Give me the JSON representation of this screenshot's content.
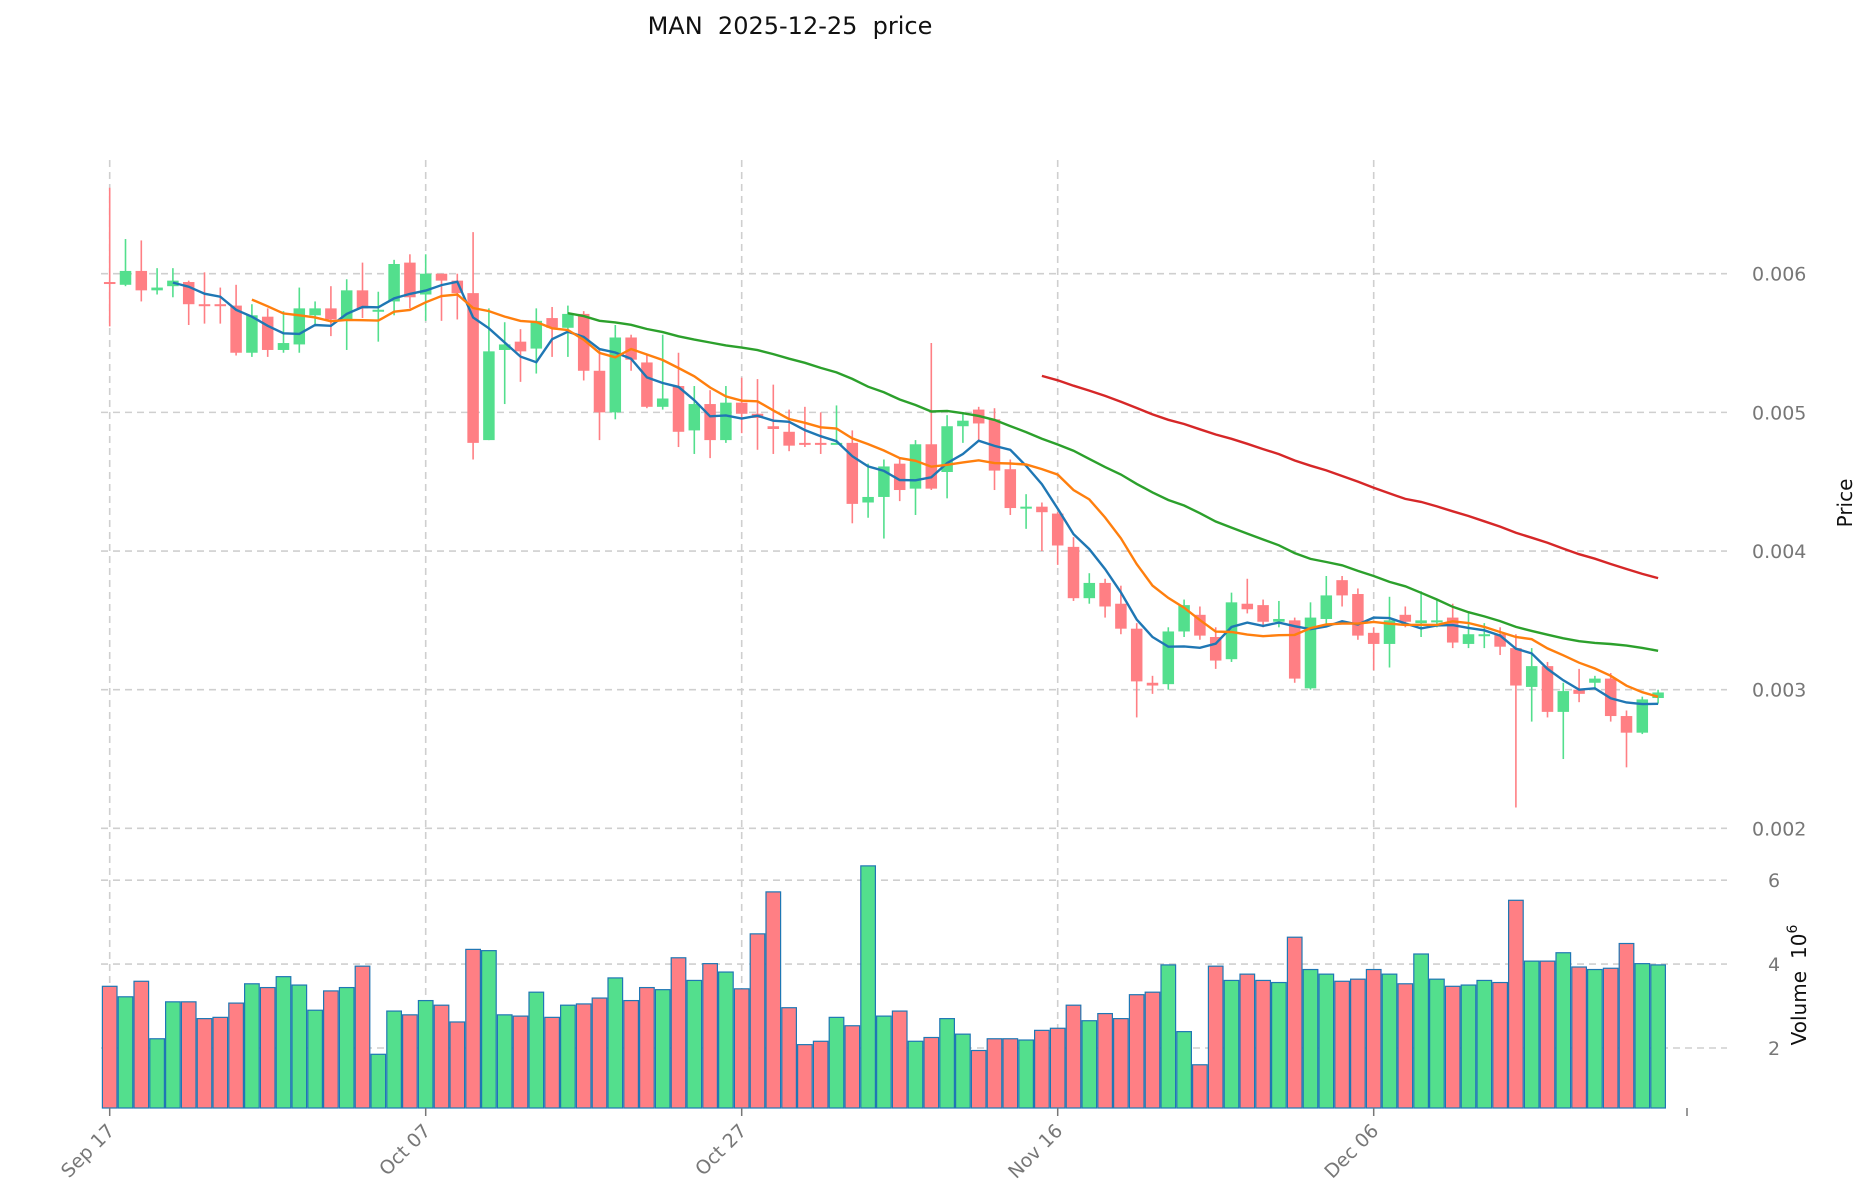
{
  "chart_data": {
    "type": "candlestick",
    "title": "MAN  2025-12-25  price",
    "ylabel": "Price",
    "ylabel_volume": "Volume",
    "volume_scale_base": "10",
    "volume_scale_exp": "6",
    "price_ylim": [
      0.00188,
      0.00682
    ],
    "price_yticks": [
      "0.002",
      "0.003",
      "0.004",
      "0.005",
      "0.006"
    ],
    "volume_ylim": [
      0.57,
      6.48
    ],
    "volume_yticks": [
      "2",
      "4",
      "6"
    ],
    "x_ticks": [
      {
        "index": 0,
        "label": "Sep 17"
      },
      {
        "index": 20,
        "label": "Oct 07"
      },
      {
        "index": 40,
        "label": "Oct 27"
      },
      {
        "index": 60,
        "label": "Nov 16"
      },
      {
        "index": 80,
        "label": "Dec 06"
      }
    ],
    "start_date": "2025-09-17",
    "grid": true,
    "colors": {
      "up": "#53df8d",
      "down": "#ff7f84",
      "volume_edge": "#1f77b4",
      "ma5": "#1f77b4",
      "ma10": "#ff7f0e",
      "ma30": "#2ca02c",
      "ma60": "#d62728"
    },
    "moving_averages": [
      5,
      10,
      30,
      60
    ],
    "open": [
      0.00594,
      0.00592,
      0.00602,
      0.00588,
      0.00591,
      0.00594,
      0.00578,
      0.00578,
      0.00577,
      0.00543,
      0.00569,
      0.00545,
      0.00549,
      0.0057,
      0.00575,
      0.00567,
      0.00588,
      0.00573,
      0.0058,
      0.00608,
      0.00585,
      0.006,
      0.00595,
      0.00586,
      0.0048,
      0.00545,
      0.00551,
      0.00546,
      0.00568,
      0.00561,
      0.00571,
      0.0053,
      0.005,
      0.00554,
      0.00536,
      0.00504,
      0.00519,
      0.00487,
      0.00506,
      0.0048,
      0.00507,
      0.00499,
      0.0049,
      0.00486,
      0.00478,
      0.00478,
      0.00478,
      0.00478,
      0.00435,
      0.00439,
      0.00463,
      0.00445,
      0.00477,
      0.00457,
      0.0049,
      0.00502,
      0.00495,
      0.00459,
      0.00431,
      0.00432,
      0.00427,
      0.00403,
      0.00366,
      0.00377,
      0.00362,
      0.00344,
      0.00305,
      0.00304,
      0.00342,
      0.00354,
      0.00338,
      0.00322,
      0.00362,
      0.00361,
      0.00349,
      0.0035,
      0.00301,
      0.00351,
      0.00379,
      0.00369,
      0.00341,
      0.00333,
      0.00354,
      0.00348,
      0.0035,
      0.00352,
      0.00333,
      0.0034,
      0.0034,
      0.0033,
      0.00302,
      0.00317,
      0.00284,
      0.003,
      0.00305,
      0.00308,
      0.00281,
      0.00269,
      0.00294
    ],
    "high": [
      0.00662,
      0.00625,
      0.00624,
      0.00604,
      0.00604,
      0.00595,
      0.00601,
      0.0059,
      0.00592,
      0.00578,
      0.00575,
      0.00573,
      0.0059,
      0.0058,
      0.00591,
      0.00596,
      0.00608,
      0.00587,
      0.0061,
      0.00614,
      0.00614,
      0.006,
      0.006,
      0.0063,
      0.00575,
      0.00565,
      0.0056,
      0.00575,
      0.00576,
      0.00577,
      0.00573,
      0.00546,
      0.00563,
      0.00556,
      0.00542,
      0.00556,
      0.00543,
      0.00519,
      0.00516,
      0.00519,
      0.00525,
      0.00524,
      0.0052,
      0.00502,
      0.00504,
      0.005,
      0.00505,
      0.00487,
      0.00463,
      0.00466,
      0.00467,
      0.0048,
      0.0055,
      0.00498,
      0.005,
      0.00504,
      0.00503,
      0.00466,
      0.00441,
      0.00435,
      0.00428,
      0.0041,
      0.00384,
      0.0038,
      0.00375,
      0.00348,
      0.0031,
      0.00345,
      0.00365,
      0.0036,
      0.00345,
      0.0037,
      0.0038,
      0.00365,
      0.00364,
      0.00352,
      0.00363,
      0.00382,
      0.00382,
      0.00373,
      0.00345,
      0.00367,
      0.0036,
      0.00371,
      0.00365,
      0.00362,
      0.00355,
      0.00348,
      0.00345,
      0.0034,
      0.0033,
      0.0032,
      0.00305,
      0.00315,
      0.0031,
      0.00312,
      0.00285,
      0.00295,
      0.003
    ],
    "low": [
      0.00562,
      0.00591,
      0.0058,
      0.00585,
      0.00583,
      0.00563,
      0.00564,
      0.00564,
      0.00541,
      0.0054,
      0.0054,
      0.00543,
      0.00543,
      0.00562,
      0.00555,
      0.00545,
      0.00568,
      0.00551,
      0.0057,
      0.00575,
      0.00566,
      0.00566,
      0.00567,
      0.00466,
      0.0048,
      0.00506,
      0.00522,
      0.00528,
      0.0054,
      0.0054,
      0.00523,
      0.0048,
      0.00495,
      0.0053,
      0.00503,
      0.00502,
      0.00475,
      0.0047,
      0.00467,
      0.00478,
      0.00485,
      0.00473,
      0.0047,
      0.00472,
      0.00475,
      0.0047,
      0.00477,
      0.0042,
      0.00424,
      0.00409,
      0.00436,
      0.00426,
      0.00444,
      0.00438,
      0.00478,
      0.0048,
      0.00444,
      0.00426,
      0.00416,
      0.004,
      0.0039,
      0.00364,
      0.00362,
      0.00352,
      0.0034,
      0.0028,
      0.00297,
      0.003,
      0.00338,
      0.00336,
      0.00315,
      0.0032,
      0.00355,
      0.00345,
      0.00345,
      0.00305,
      0.003,
      0.00345,
      0.0036,
      0.00336,
      0.00314,
      0.00316,
      0.00345,
      0.00338,
      0.00345,
      0.0033,
      0.0033,
      0.0033,
      0.00325,
      0.00215,
      0.00277,
      0.0028,
      0.0025,
      0.00291,
      0.003,
      0.00277,
      0.00244,
      0.00268,
      0.0029
    ],
    "close": [
      0.00593,
      0.00602,
      0.00588,
      0.0059,
      0.00595,
      0.00578,
      0.00577,
      0.00577,
      0.00543,
      0.0057,
      0.00545,
      0.0055,
      0.00575,
      0.00575,
      0.00567,
      0.00588,
      0.00575,
      0.00574,
      0.00607,
      0.00583,
      0.006,
      0.00595,
      0.00586,
      0.00478,
      0.00544,
      0.00549,
      0.00544,
      0.00566,
      0.00561,
      0.00571,
      0.0053,
      0.005,
      0.00554,
      0.00538,
      0.00504,
      0.0051,
      0.00486,
      0.00506,
      0.0048,
      0.00507,
      0.00499,
      0.00496,
      0.00488,
      0.00476,
      0.00477,
      0.00477,
      0.00478,
      0.00434,
      0.00439,
      0.00461,
      0.00444,
      0.00477,
      0.00445,
      0.0049,
      0.00494,
      0.00492,
      0.00458,
      0.00431,
      0.00432,
      0.00428,
      0.00404,
      0.00366,
      0.00377,
      0.0036,
      0.00344,
      0.00306,
      0.00303,
      0.00342,
      0.00361,
      0.00339,
      0.00321,
      0.00363,
      0.00358,
      0.00349,
      0.00351,
      0.00308,
      0.00352,
      0.00368,
      0.00368,
      0.00339,
      0.00333,
      0.0035,
      0.00349,
      0.0035,
      0.0035,
      0.00334,
      0.0034,
      0.0034,
      0.00331,
      0.00303,
      0.00317,
      0.00284,
      0.00299,
      0.00297,
      0.00308,
      0.00281,
      0.00269,
      0.00293,
      0.00298
    ],
    "volume": [
      3.47,
      3.22,
      3.59,
      2.22,
      3.1,
      3.1,
      2.7,
      2.73,
      3.07,
      3.53,
      3.44,
      3.7,
      3.5,
      2.9,
      3.36,
      3.44,
      3.95,
      1.85,
      2.88,
      2.79,
      3.13,
      3.02,
      2.62,
      4.35,
      4.32,
      2.79,
      2.76,
      3.33,
      2.73,
      3.02,
      3.05,
      3.19,
      3.67,
      3.13,
      3.44,
      3.39,
      4.15,
      3.61,
      4.01,
      3.81,
      3.41,
      4.72,
      5.72,
      2.96,
      2.08,
      2.16,
      2.73,
      2.53,
      6.34,
      2.76,
      2.88,
      2.16,
      2.25,
      2.7,
      2.33,
      1.94,
      2.22,
      2.22,
      2.19,
      2.42,
      2.47,
      3.02,
      2.65,
      2.82,
      2.7,
      3.27,
      3.33,
      3.98,
      2.39,
      1.6,
      3.95,
      3.61,
      3.76,
      3.61,
      3.56,
      4.64,
      3.87,
      3.76,
      3.59,
      3.64,
      3.87,
      3.76,
      3.53,
      4.24,
      3.64,
      3.47,
      3.5,
      3.61,
      3.56,
      5.52,
      4.07,
      4.07,
      4.27,
      3.93,
      3.87,
      3.9,
      4.49,
      4.01,
      3.98
    ]
  }
}
